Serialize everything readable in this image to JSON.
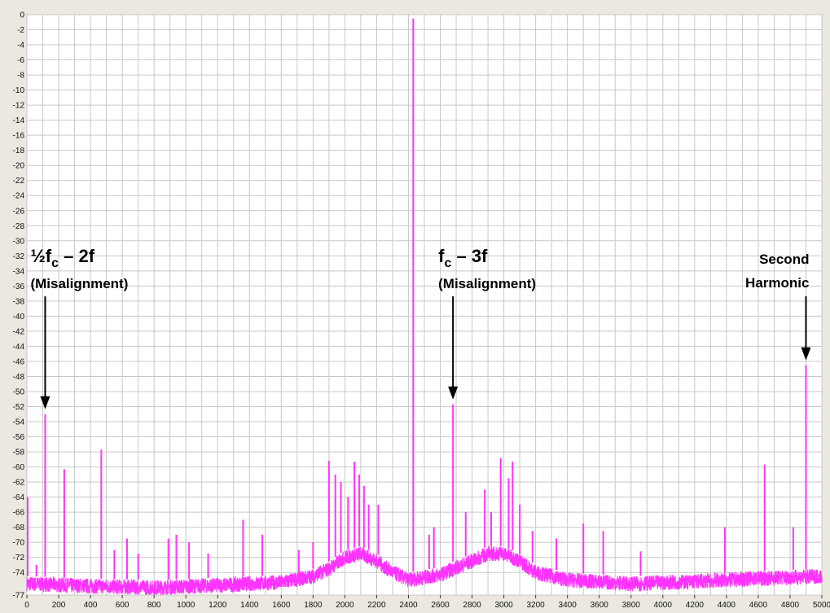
{
  "colors": {
    "background": "#ffffff",
    "frame": "#ebe8df",
    "grid": "#c8c8c8",
    "trace": "#ff33ff",
    "arrow": "#000000"
  },
  "chart_data": {
    "type": "line",
    "title": "",
    "xlabel": "",
    "ylabel": "",
    "xlim": [
      0,
      5000
    ],
    "ylim": [
      -77,
      0
    ],
    "grid": true,
    "x_ticks": [
      0,
      200,
      400,
      600,
      800,
      1000,
      1200,
      1400,
      1600,
      1800,
      2000,
      2200,
      2400,
      2600,
      2800,
      3000,
      3200,
      3400,
      3600,
      3800,
      4000,
      4200,
      4400,
      4600,
      4800,
      5000
    ],
    "y_ticks": [
      0,
      -2,
      -4,
      -6,
      -8,
      -10,
      -12,
      -14,
      -16,
      -18,
      -20,
      -22,
      -24,
      -26,
      -28,
      -30,
      -32,
      -34,
      -36,
      -38,
      -40,
      -42,
      -44,
      -46,
      -48,
      -50,
      -52,
      -54,
      -56,
      -58,
      -60,
      -62,
      -64,
      -66,
      -68,
      -70,
      -72,
      -74,
      -77
    ],
    "series": [
      {
        "color": "#ff33ff",
        "noise_floor": [
          [
            0,
            -75.5
          ],
          [
            400,
            -75.8
          ],
          [
            800,
            -76.0
          ],
          [
            1200,
            -75.7
          ],
          [
            1600,
            -75.3
          ],
          [
            1800,
            -74.5
          ],
          [
            1900,
            -73.5
          ],
          [
            2000,
            -72.0
          ],
          [
            2100,
            -71.5
          ],
          [
            2200,
            -72.5
          ],
          [
            2300,
            -74.0
          ],
          [
            2400,
            -75.0
          ],
          [
            2600,
            -74.3
          ],
          [
            2800,
            -72.5
          ],
          [
            2900,
            -71.5
          ],
          [
            3000,
            -71.5
          ],
          [
            3100,
            -72.5
          ],
          [
            3200,
            -74.0
          ],
          [
            3400,
            -75.0
          ],
          [
            3800,
            -75.5
          ],
          [
            4200,
            -75.2
          ],
          [
            4600,
            -74.8
          ],
          [
            5000,
            -74.5
          ]
        ],
        "peaks": [
          {
            "x": 5,
            "y": -64
          },
          {
            "x": 60,
            "y": -73
          },
          {
            "x": 115,
            "y": -53
          },
          {
            "x": 235,
            "y": -60.3
          },
          {
            "x": 468,
            "y": -57.7
          },
          {
            "x": 550,
            "y": -71
          },
          {
            "x": 630,
            "y": -69.5
          },
          {
            "x": 700,
            "y": -71.5
          },
          {
            "x": 890,
            "y": -69.5
          },
          {
            "x": 940,
            "y": -69
          },
          {
            "x": 1020,
            "y": -70
          },
          {
            "x": 1140,
            "y": -71.5
          },
          {
            "x": 1360,
            "y": -67
          },
          {
            "x": 1480,
            "y": -69
          },
          {
            "x": 1710,
            "y": -71
          },
          {
            "x": 1800,
            "y": -70
          },
          {
            "x": 1900,
            "y": -59.2
          },
          {
            "x": 1940,
            "y": -61
          },
          {
            "x": 1975,
            "y": -62
          },
          {
            "x": 2020,
            "y": -64
          },
          {
            "x": 2060,
            "y": -59.3
          },
          {
            "x": 2090,
            "y": -61
          },
          {
            "x": 2120,
            "y": -62.5
          },
          {
            "x": 2150,
            "y": -65
          },
          {
            "x": 2210,
            "y": -65
          },
          {
            "x": 2430,
            "y": -0.5
          },
          {
            "x": 2530,
            "y": -69
          },
          {
            "x": 2560,
            "y": -68
          },
          {
            "x": 2680,
            "y": -51.7
          },
          {
            "x": 2760,
            "y": -66
          },
          {
            "x": 2880,
            "y": -63
          },
          {
            "x": 2920,
            "y": -66
          },
          {
            "x": 2980,
            "y": -58.8
          },
          {
            "x": 3030,
            "y": -61.5
          },
          {
            "x": 3055,
            "y": -59.3
          },
          {
            "x": 3100,
            "y": -65
          },
          {
            "x": 3180,
            "y": -68.5
          },
          {
            "x": 3330,
            "y": -69.5
          },
          {
            "x": 3500,
            "y": -67.5
          },
          {
            "x": 3625,
            "y": -68.5
          },
          {
            "x": 3860,
            "y": -71.2
          },
          {
            "x": 4390,
            "y": -68
          },
          {
            "x": 4640,
            "y": -59.7
          },
          {
            "x": 4820,
            "y": -68
          },
          {
            "x": 4900,
            "y": -46.5
          }
        ]
      }
    ],
    "annotations": [
      {
        "id": "a1",
        "line1_main": "½f",
        "line1_sub": "c",
        "line1_rest": " – 2f",
        "line2": "(Misalignment)",
        "x": 115,
        "y": -53
      },
      {
        "id": "a2",
        "line1_main": "f",
        "line1_sub": "c",
        "line1_rest": " – 3f",
        "line2": "(Misalignment)",
        "x": 2680,
        "y": -51.7
      },
      {
        "id": "a3",
        "line1_main": "Second",
        "line1_sub": "",
        "line1_rest": "",
        "line2": "Harmonic",
        "x": 4900,
        "y": -46.5
      }
    ]
  }
}
